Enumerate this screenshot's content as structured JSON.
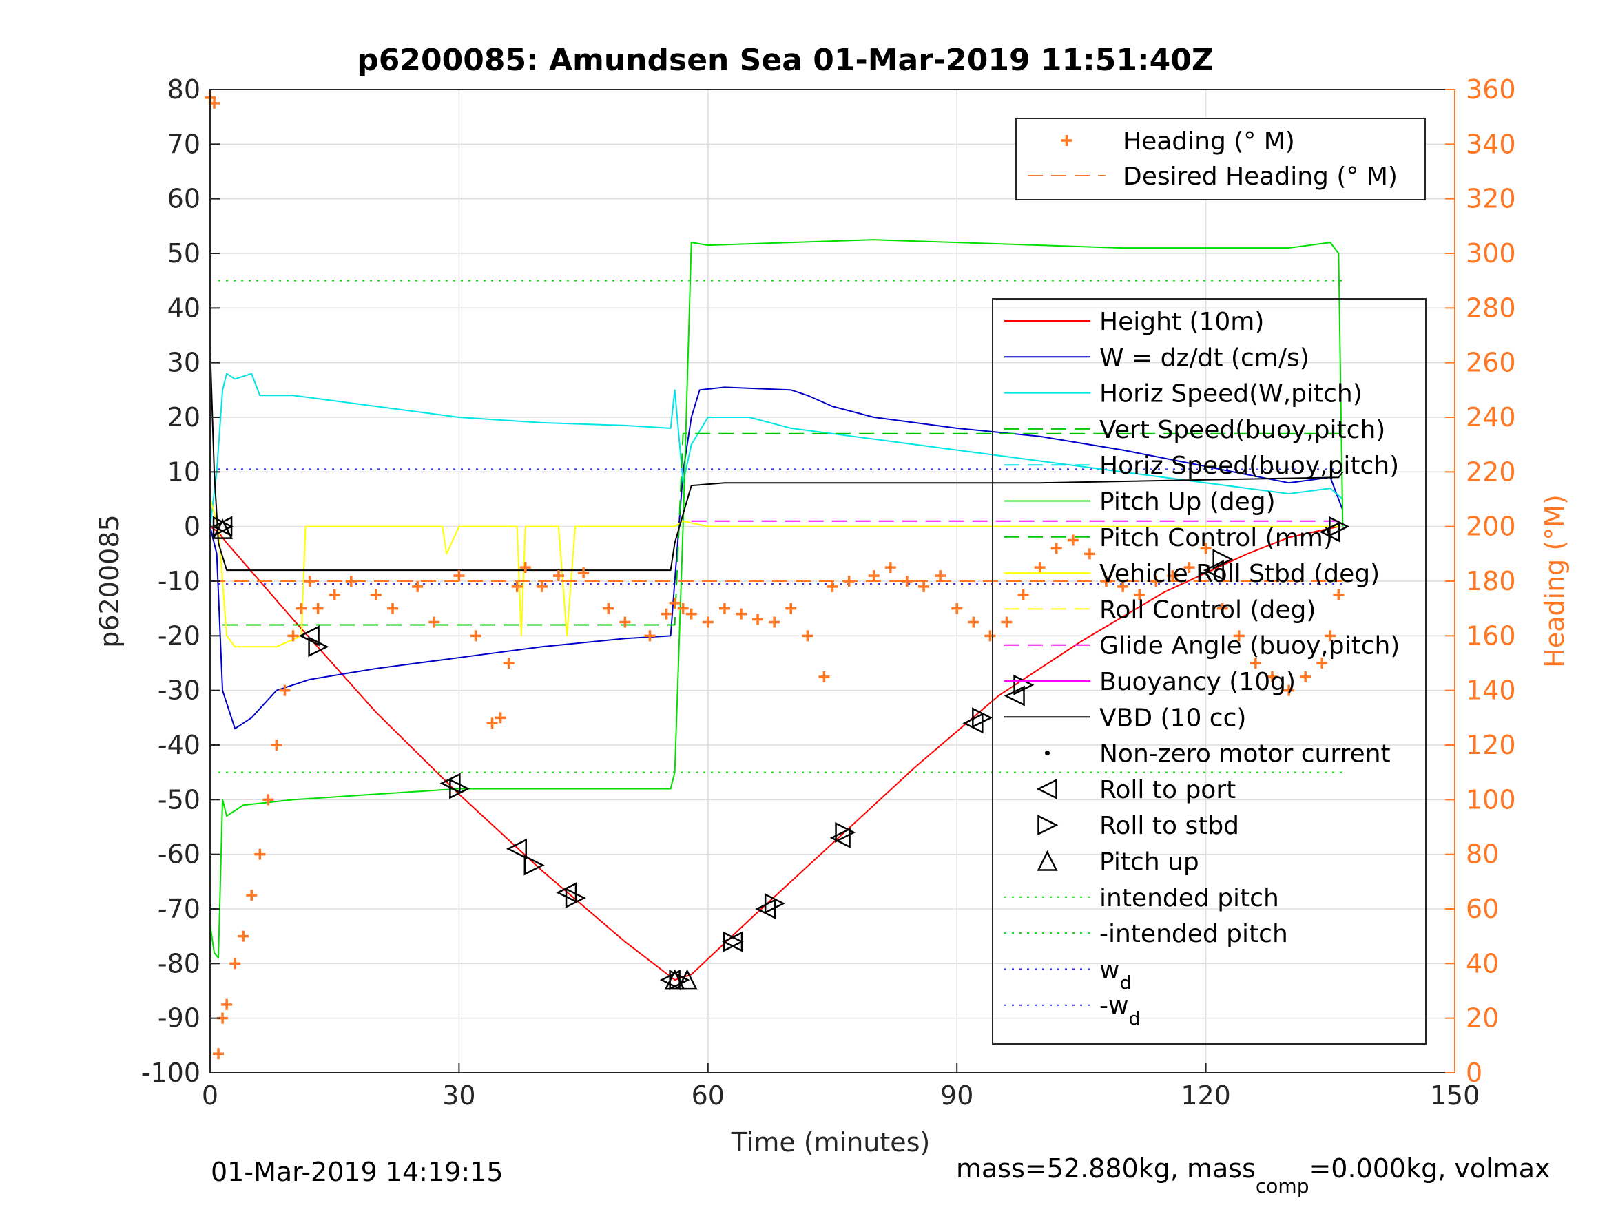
{
  "chart_data": {
    "type": "line",
    "title": "p6200085: Amundsen Sea 01-Mar-2019 11:51:40Z",
    "xlabel": "Time (minutes)",
    "ylabel_left": "p6200085",
    "ylabel_right": "Heading (°M)",
    "xlim": [
      0,
      150
    ],
    "ylim_left": [
      -100,
      80
    ],
    "ylim_right": [
      0,
      360
    ],
    "x_ticks": [
      0,
      30,
      60,
      90,
      120,
      150
    ],
    "y_left_ticks": [
      80,
      70,
      60,
      50,
      40,
      30,
      20,
      10,
      0,
      -10,
      -20,
      -30,
      -40,
      -50,
      -60,
      -70,
      -80,
      -90,
      -100
    ],
    "y_right_ticks": [
      360,
      340,
      320,
      300,
      280,
      260,
      240,
      220,
      200,
      180,
      160,
      140,
      120,
      100,
      80,
      60,
      40,
      20,
      0
    ],
    "grid": true,
    "footer_left": "01-Mar-2019 14:19:15",
    "footer_right": "mass=52.880kg, mass",
    "footer_right_sub": "comp",
    "footer_right_tail": "=0.000kg, volmax",
    "colors": {
      "height": "#ff0000",
      "w": "#0000c8",
      "horiz_speed": "#00e5e5",
      "vert_speed_buoy": "#00c800",
      "pitch": "#00e000",
      "roll": "#ffff00",
      "glide": "#ff00ff",
      "vbd": "#000000",
      "heading": "#ff7722",
      "intended_pitch": "#00e000",
      "wd": "#3333ff"
    },
    "legend_heading": [
      {
        "label": "Heading (° M)",
        "style": "plus",
        "color": "#ff7722"
      },
      {
        "label": "Desired Heading (° M)",
        "style": "dash",
        "color": "#ff7722"
      }
    ],
    "legend_main": [
      {
        "label": "Height (10m)",
        "style": "line",
        "color": "#ff0000"
      },
      {
        "label": "W = dz/dt (cm/s)",
        "style": "line",
        "color": "#0000c8"
      },
      {
        "label": "Horiz Speed(W,pitch)",
        "style": "line",
        "color": "#00e5e5"
      },
      {
        "label": "Vert Speed(buoy,pitch)",
        "style": "dash",
        "color": "#00c800"
      },
      {
        "label": "Horiz Speed(buoy,pitch)",
        "style": "dash",
        "color": "#00e5e5"
      },
      {
        "label": "Pitch Up (deg)",
        "style": "line",
        "color": "#00e000"
      },
      {
        "label": "Pitch Control (mm)",
        "style": "dash",
        "color": "#00c800"
      },
      {
        "label": "Vehicle Roll Stbd (deg)",
        "style": "line",
        "color": "#ffff00"
      },
      {
        "label": "Roll Control (deg)",
        "style": "dash",
        "color": "#ffff00"
      },
      {
        "label": "Glide Angle (buoy,pitch)",
        "style": "dash",
        "color": "#ff00ff"
      },
      {
        "label": "Buoyancy (10g)",
        "style": "line",
        "color": "#ff00ff"
      },
      {
        "label": "VBD (10 cc)",
        "style": "line",
        "color": "#000000"
      },
      {
        "label": "Non-zero motor current",
        "style": "dot",
        "color": "#000000"
      },
      {
        "label": "Roll to port",
        "style": "tri-left",
        "color": "#000000"
      },
      {
        "label": "Roll to stbd",
        "style": "tri-right",
        "color": "#000000"
      },
      {
        "label": "Pitch up",
        "style": "tri-up",
        "color": "#000000"
      },
      {
        "label": "intended pitch",
        "style": "dot-line",
        "color": "#00e000"
      },
      {
        "label": "-intended pitch",
        "style": "dot-line",
        "color": "#00e000"
      },
      {
        "label": "w",
        "sub": "d",
        "style": "dot-line",
        "color": "#3333ff"
      },
      {
        "label": "-w",
        "sub": "d",
        "style": "dot-line",
        "color": "#3333ff"
      }
    ],
    "series": [
      {
        "name": "Height (10m)",
        "axis": "left",
        "color": "#ff0000",
        "x": [
          0,
          1,
          2,
          10,
          20,
          30,
          40,
          50,
          56,
          58,
          65,
          75,
          85,
          95,
          105,
          115,
          125,
          130,
          136
        ],
        "y": [
          0,
          -1,
          -3,
          -17,
          -34,
          -49,
          -63,
          -76,
          -83,
          -82,
          -72,
          -58,
          -44,
          -31,
          -21,
          -12,
          -5,
          -2,
          0
        ]
      },
      {
        "name": "W = dz/dt (cm/s)",
        "axis": "left",
        "color": "#0000c8",
        "x": [
          0,
          0.8,
          1.5,
          3,
          5,
          8,
          12,
          20,
          30,
          40,
          50,
          55.5,
          56,
          57,
          58,
          59,
          62,
          70,
          72,
          75,
          80,
          90,
          100,
          110,
          120,
          130,
          135,
          136.5
        ],
        "y": [
          0,
          -5,
          -30,
          -37,
          -35,
          -30,
          -28,
          -26,
          -24,
          -22,
          -20.5,
          -20,
          -10,
          10,
          20,
          25,
          25.5,
          25,
          24,
          22,
          20,
          18,
          16.5,
          14,
          11,
          8,
          9,
          3
        ]
      },
      {
        "name": "Horiz Speed(W,pitch)",
        "axis": "left",
        "color": "#00e5e5",
        "x": [
          0,
          0.8,
          1.5,
          2,
          3,
          5,
          6,
          10,
          20,
          30,
          40,
          50,
          55.5,
          56,
          57,
          58,
          60,
          65,
          70,
          80,
          90,
          100,
          110,
          120,
          130,
          135,
          136.5
        ],
        "y": [
          0,
          10,
          25,
          28,
          27,
          28,
          24,
          24,
          22,
          20,
          19,
          18.5,
          18,
          25,
          8,
          15,
          20,
          20,
          18,
          16,
          14,
          12,
          10,
          8,
          6,
          7,
          5
        ]
      },
      {
        "name": "Vert Speed(buoy,pitch)",
        "axis": "left",
        "color": "#00c800",
        "dash": true,
        "x": [
          1.5,
          55.5,
          56,
          57,
          136.5
        ],
        "y": [
          -18,
          -18,
          -18,
          17,
          17
        ]
      },
      {
        "name": "Pitch Up (deg)",
        "axis": "left",
        "color": "#00e000",
        "x": [
          0,
          0.5,
          1,
          1.5,
          2,
          4,
          10,
          20,
          30,
          40,
          50,
          55.5,
          56,
          57,
          58,
          60,
          70,
          80,
          90,
          100,
          110,
          120,
          130,
          135,
          136,
          136.5
        ],
        "y": [
          -73,
          -78,
          -79,
          -50,
          -53,
          -51,
          -50,
          -49,
          -48,
          -48,
          -48,
          -48,
          -45,
          0,
          52,
          51.5,
          52,
          52.5,
          52,
          51.5,
          51,
          51,
          51,
          52,
          50,
          0
        ]
      },
      {
        "name": "Vehicle Roll Stbd (deg)",
        "axis": "left",
        "color": "#ffff00",
        "x": [
          0,
          1,
          2,
          3,
          8,
          11,
          11.5,
          12,
          20,
          28,
          28.5,
          30,
          37,
          37.5,
          38,
          42,
          43,
          44,
          50,
          55.5,
          56,
          57,
          60,
          70,
          80,
          90,
          100,
          110,
          120,
          130,
          136
        ],
        "y": [
          5,
          0,
          -20,
          -22,
          -22,
          -20,
          0,
          0,
          0,
          0,
          -5,
          0,
          0,
          -20,
          0,
          0,
          -20,
          0,
          0,
          0,
          0,
          1,
          0,
          0,
          0,
          0,
          0,
          0,
          0,
          0,
          0
        ]
      },
      {
        "name": "Glide Angle (buoy,pitch)",
        "axis": "left",
        "color": "#ff00ff",
        "dash": true,
        "x": [
          58,
          136.5
        ],
        "y": [
          1,
          1
        ]
      },
      {
        "name": "VBD (10 cc)",
        "axis": "left",
        "color": "#000000",
        "x": [
          0,
          0.5,
          1,
          2,
          55.5,
          56,
          58,
          62,
          70,
          100,
          136,
          136.5
        ],
        "y": [
          33,
          10,
          -3,
          -8,
          -8,
          -3,
          7.5,
          8,
          8,
          8,
          9,
          10
        ]
      },
      {
        "name": "Desired Heading (° M)",
        "axis": "right",
        "color": "#ff7722",
        "dash": true,
        "x": [
          0,
          136.5
        ],
        "y": [
          180,
          180
        ]
      }
    ],
    "reference_lines": [
      {
        "name": "intended pitch",
        "y": 45,
        "color": "#00e000"
      },
      {
        "name": "-intended pitch",
        "y": -45,
        "color": "#00e000"
      },
      {
        "name": "w_d",
        "y": 10.5,
        "color": "#3333ff"
      },
      {
        "name": "-w_d",
        "y": -10.5,
        "color": "#3333ff"
      }
    ],
    "heading_points": {
      "x": [
        0,
        0.5,
        1,
        1.5,
        2,
        3,
        4,
        5,
        6,
        7,
        8,
        9,
        10,
        11,
        12,
        13,
        15,
        17,
        20,
        22,
        25,
        27,
        30,
        32,
        34,
        35,
        36,
        37,
        38,
        40,
        42,
        45,
        48,
        50,
        53,
        55,
        56,
        57,
        58,
        60,
        62,
        64,
        66,
        68,
        70,
        72,
        74,
        75,
        77,
        80,
        82,
        84,
        86,
        88,
        90,
        92,
        94,
        96,
        98,
        100,
        102,
        104,
        106,
        108,
        110,
        112,
        114,
        116,
        118,
        120,
        122,
        124,
        126,
        128,
        130,
        132,
        134,
        135,
        136
      ],
      "y": [
        357,
        355,
        7,
        20,
        25,
        40,
        50,
        65,
        80,
        100,
        120,
        140,
        160,
        170,
        180,
        170,
        175,
        180,
        175,
        170,
        178,
        165,
        182,
        160,
        128,
        130,
        150,
        178,
        185,
        178,
        182,
        183,
        170,
        165,
        160,
        168,
        172,
        170,
        168,
        165,
        170,
        168,
        166,
        165,
        170,
        160,
        145,
        178,
        180,
        182,
        185,
        180,
        178,
        182,
        170,
        165,
        160,
        165,
        175,
        185,
        192,
        195,
        190,
        180,
        178,
        175,
        180,
        182,
        185,
        192,
        170,
        160,
        150,
        145,
        140,
        145,
        150,
        160,
        175
      ]
    },
    "markers": {
      "roll_to_port": {
        "x": [
          1.5,
          12,
          29,
          37,
          43,
          55.5,
          63,
          67,
          76,
          92,
          97,
          121,
          135
        ],
        "y": [
          0,
          -20,
          -47,
          -59,
          -67,
          -83,
          -76,
          -70,
          -57,
          -36,
          -31,
          -8,
          -1
        ]
      },
      "roll_to_stbd": {
        "x": [
          1.5,
          13,
          30,
          39,
          44,
          56.5,
          63,
          68,
          76.5,
          93,
          98,
          122,
          136
        ],
        "y": [
          0,
          -22,
          -48,
          -62,
          -68,
          -83,
          -76,
          -69,
          -56,
          -35,
          -29,
          -6,
          0
        ]
      },
      "pitch_up": {
        "x": [
          1.5,
          56,
          57.5
        ],
        "y": [
          -0.5,
          -83,
          -83
        ]
      }
    }
  }
}
